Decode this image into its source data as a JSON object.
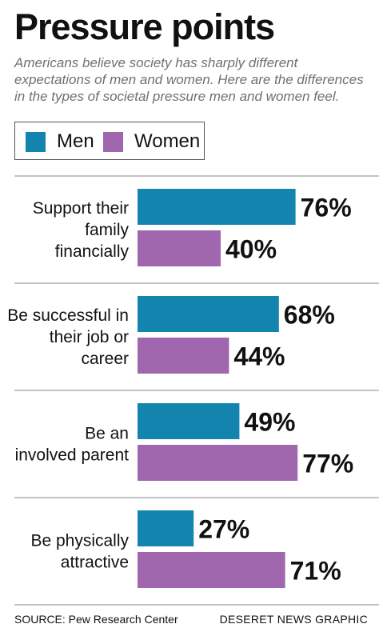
{
  "header": {
    "title": "Pressure points",
    "subtitle": "Americans believe society has sharply different expectations of men and women. Here are the differences in the types of societal pressure men and women feel."
  },
  "legend": {
    "men_label": "Men",
    "women_label": "Women"
  },
  "colors": {
    "men": "#1284ad",
    "women": "#a066ae",
    "divider": "#888888"
  },
  "chart_data": {
    "type": "bar",
    "orientation": "horizontal",
    "title": "Pressure points",
    "categories": [
      [
        "Support their",
        "family",
        "financially"
      ],
      [
        "Be successful in",
        "their job or",
        "career"
      ],
      [
        "Be an",
        "involved parent"
      ],
      [
        "Be physically",
        "attractive"
      ]
    ],
    "series": [
      {
        "name": "Men",
        "values": [
          76,
          68,
          49,
          27
        ]
      },
      {
        "name": "Women",
        "values": [
          40,
          44,
          77,
          71
        ]
      }
    ],
    "value_suffix": "%",
    "xlim": [
      0,
      100
    ],
    "legend_position": "top-left",
    "grid": false
  },
  "footer": {
    "source": "SOURCE: Pew Research Center",
    "credit": "DESERET NEWS GRAPHIC"
  }
}
